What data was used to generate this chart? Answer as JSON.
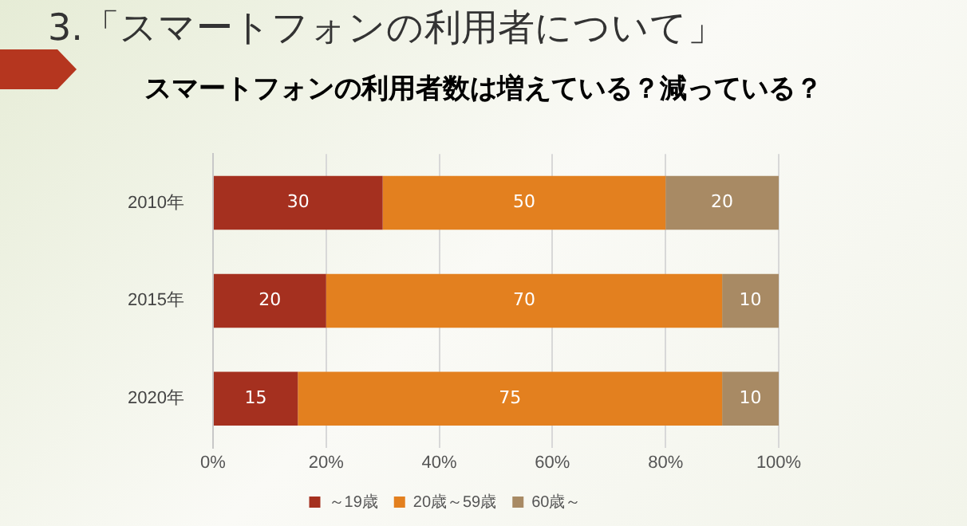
{
  "chart_data": {
    "type": "bar",
    "title": "3.「スマートフォンの利用者について」",
    "subtitle": "スマートフォンの利用者数は増えている？減っている？",
    "orientation": "horizontal",
    "stacked": true,
    "categories": [
      "2010年",
      "2015年",
      "2020年"
    ],
    "series": [
      {
        "name": "～19歳",
        "color": "#a5301f",
        "values": [
          30,
          20,
          15
        ]
      },
      {
        "name": "20歳～59歳",
        "color": "#e3801f",
        "values": [
          50,
          70,
          75
        ]
      },
      {
        "name": "60歳～",
        "color": "#a88a64",
        "values": [
          20,
          10,
          10
        ]
      }
    ],
    "xlim": [
      0,
      100
    ],
    "xticks": [
      {
        "value": 0,
        "label": "0%"
      },
      {
        "value": 20,
        "label": "20%"
      },
      {
        "value": 40,
        "label": "40%"
      },
      {
        "value": 60,
        "label": "60%"
      },
      {
        "value": 80,
        "label": "80%"
      },
      {
        "value": 100,
        "label": "100%"
      }
    ],
    "grid": "x",
    "legend": "bottom",
    "data_labels": true
  }
}
